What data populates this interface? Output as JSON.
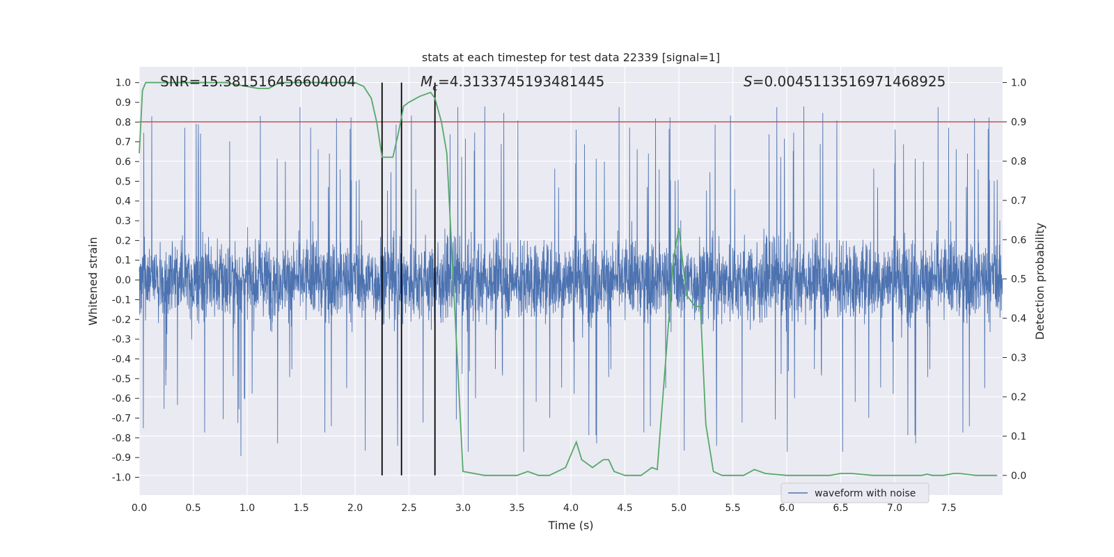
{
  "chart_data": {
    "type": "line",
    "title": "stats at each timestep for test data 22339 [signal=1]",
    "xlabel": "Time (s)",
    "ylabel_left": "Whitened strain",
    "ylabel_right": "Detection probability",
    "xlim": [
      0.0,
      8.0
    ],
    "ylim_left": [
      -1.09,
      1.08
    ],
    "ylim_right": [
      -0.05,
      1.04
    ],
    "x_ticks": [
      "0.0",
      "0.5",
      "1.0",
      "1.5",
      "2.0",
      "2.5",
      "3.0",
      "3.5",
      "4.0",
      "4.5",
      "5.0",
      "5.5",
      "6.0",
      "6.5",
      "7.0",
      "7.5"
    ],
    "y_left_ticks": [
      "1.0",
      "0.9",
      "0.8",
      "0.7",
      "0.6",
      "0.5",
      "0.4",
      "0.3",
      "0.2",
      "0.1",
      "0.0",
      "-0.1",
      "-0.2",
      "-0.3",
      "-0.4",
      "-0.5",
      "-0.6",
      "-0.7",
      "-0.8",
      "-0.9",
      "-1.0"
    ],
    "y_right_ticks": [
      "1.0",
      "0.9",
      "0.8",
      "0.7",
      "0.6",
      "0.5",
      "0.4",
      "0.3",
      "0.2",
      "0.1",
      "0.0"
    ],
    "grid": true,
    "legend_position": "lower-right",
    "annotations": {
      "snr": "SNR=15.381516456604004",
      "mc_symbol": "M",
      "mc_sub": "c",
      "mc_value": "=4.3133745193481445",
      "s_symbol": "S",
      "s_value": "=0.0045113516971468925"
    },
    "series": [
      {
        "name": "waveform with noise",
        "axis": "left",
        "color": "#4c72b0",
        "description_points": "dense noise waveform, 0.0–8.0 s"
      },
      {
        "axis": "right",
        "color": "#55a868",
        "x": [
          0.0,
          0.03,
          0.06,
          0.1,
          0.2,
          0.3,
          0.5,
          0.7,
          0.8,
          0.9,
          1.0,
          1.1,
          1.2,
          1.3,
          1.5,
          1.7,
          1.9,
          2.0,
          2.08,
          2.15,
          2.2,
          2.25,
          2.3,
          2.35,
          2.4,
          2.45,
          2.5,
          2.6,
          2.7,
          2.74,
          2.8,
          2.85,
          2.9,
          2.95,
          3.0,
          3.2,
          3.5,
          3.6,
          3.7,
          3.8,
          3.95,
          4.05,
          4.1,
          4.2,
          4.3,
          4.35,
          4.4,
          4.5,
          4.65,
          4.75,
          4.8,
          4.88,
          4.95,
          5.0,
          5.07,
          5.15,
          5.2,
          5.25,
          5.32,
          5.4,
          5.6,
          5.7,
          5.8,
          6.0,
          6.2,
          6.4,
          6.5,
          6.6,
          6.8,
          7.0,
          7.25,
          7.3,
          7.35,
          7.45,
          7.55,
          7.6,
          7.75,
          7.95
        ],
        "values": [
          0.82,
          0.98,
          1.0,
          1.0,
          1.0,
          1.0,
          1.0,
          1.0,
          1.0,
          0.995,
          0.99,
          0.985,
          0.985,
          1.0,
          1.0,
          1.0,
          1.0,
          1.0,
          0.99,
          0.96,
          0.9,
          0.81,
          0.81,
          0.81,
          0.87,
          0.94,
          0.95,
          0.965,
          0.975,
          0.96,
          0.9,
          0.82,
          0.55,
          0.28,
          0.01,
          0.0,
          0.0,
          0.01,
          0.0,
          0.0,
          0.02,
          0.085,
          0.04,
          0.02,
          0.04,
          0.04,
          0.01,
          0.0,
          0.0,
          0.02,
          0.015,
          0.3,
          0.55,
          0.63,
          0.46,
          0.43,
          0.43,
          0.13,
          0.01,
          0.0,
          0.0,
          0.015,
          0.005,
          0.0,
          0.0,
          0.0,
          0.005,
          0.005,
          0.0,
          0.0,
          0.0,
          0.003,
          0.0,
          0.0,
          0.005,
          0.005,
          0.0,
          0.0
        ]
      }
    ],
    "threshold_line": {
      "axis": "right",
      "value": 0.9,
      "color": "#c44e52"
    },
    "vertical_lines": {
      "color": "#000000",
      "x": [
        2.25,
        2.43,
        2.74
      ],
      "ymin": 0.0,
      "ymax": 1.0
    }
  }
}
